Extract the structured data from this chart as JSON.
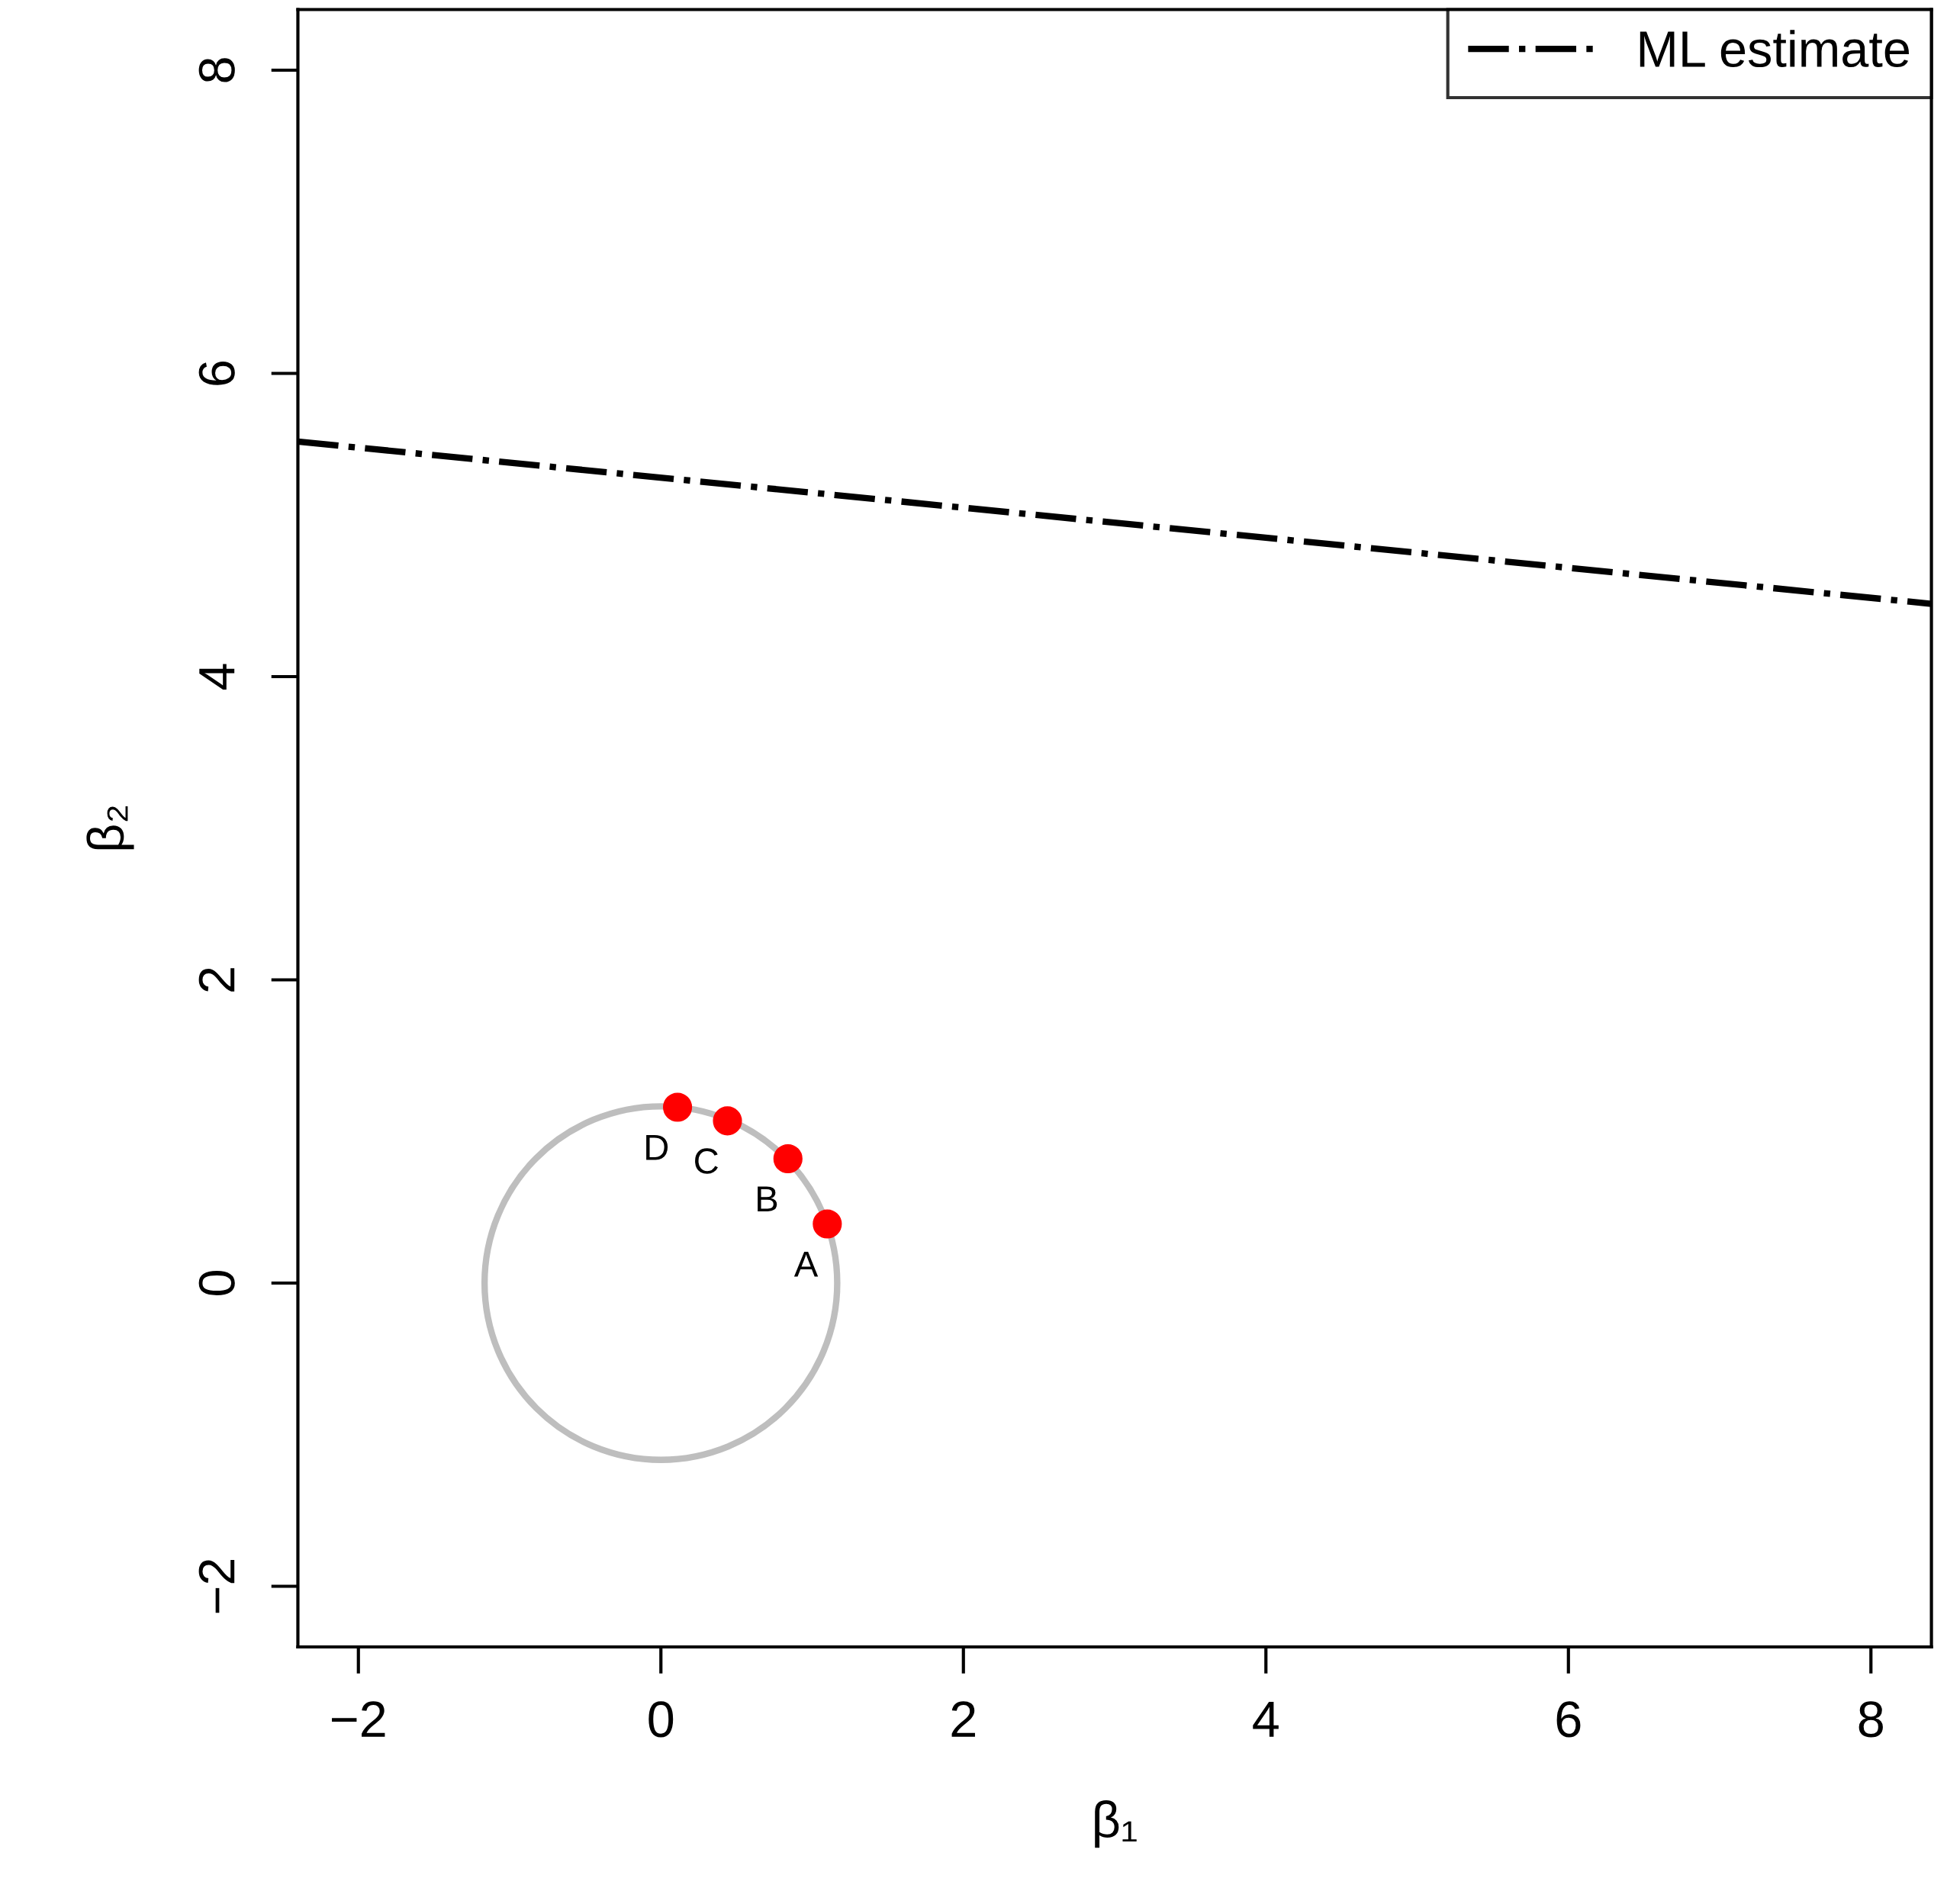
{
  "chart_data": {
    "type": "line",
    "xlabel": "β₁",
    "ylabel": "β₂",
    "xlim": [
      -2.4,
      8.4
    ],
    "ylim": [
      -2.4,
      8.4
    ],
    "xticks": [
      -2,
      0,
      2,
      4,
      6,
      8
    ],
    "yticks": [
      -2,
      0,
      2,
      4,
      6,
      8
    ],
    "grid": false,
    "legend": "top right",
    "series": [
      {
        "name": "ML estimate",
        "color": "#000000",
        "line_style": "dashdot",
        "marker": "none",
        "x": [
          -2.4,
          8.4
        ],
        "values": [
          5.55,
          4.48
        ]
      },
      {
        "type": "scatter",
        "color": "#ff0000",
        "marker": "circle",
        "x": [
          1.1,
          0.84,
          0.44,
          0.11
        ],
        "values": [
          0.39,
          0.82,
          1.07,
          1.16
        ],
        "value_labels": [
          "A",
          "B",
          "C",
          "D"
        ]
      }
    ]
  }
}
